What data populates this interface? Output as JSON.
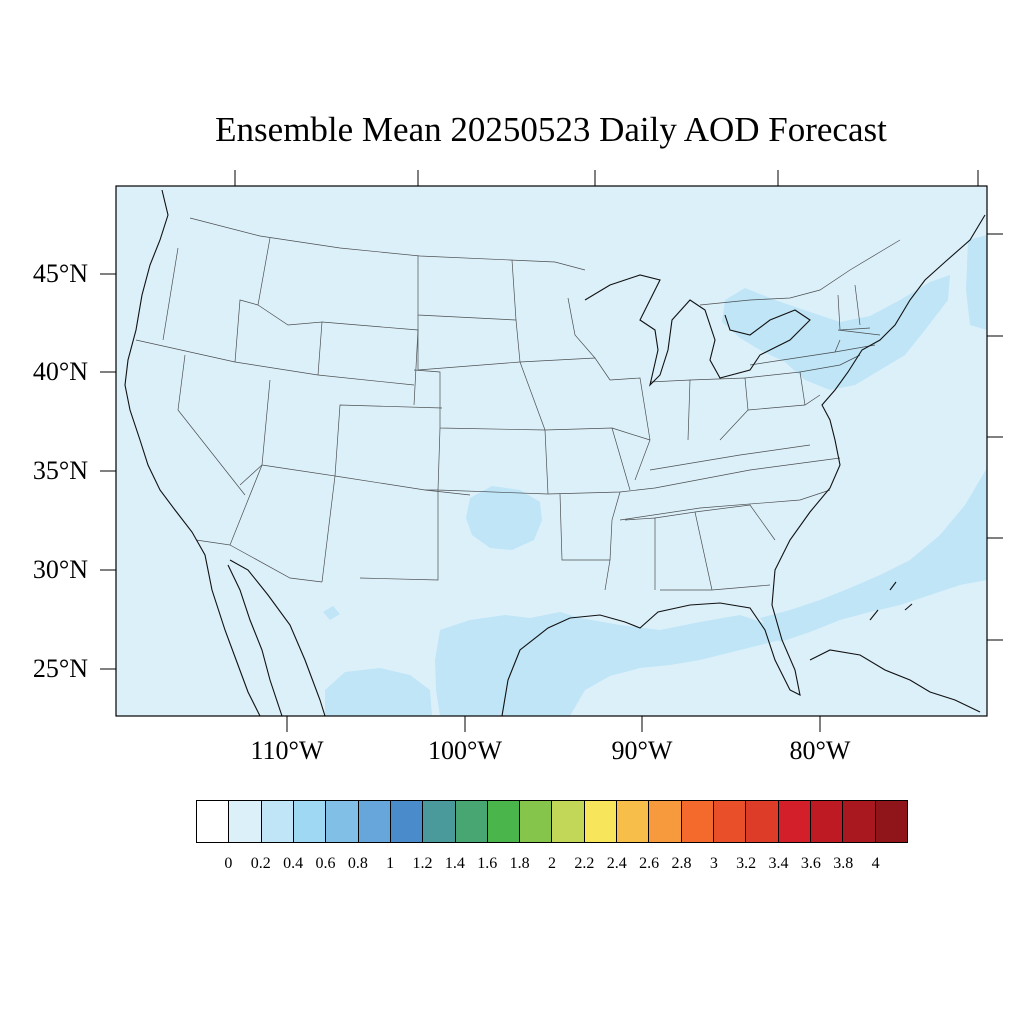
{
  "title": "Ensemble Mean 20250523 Daily AOD Forecast",
  "map": {
    "region": "Continental United States",
    "projection": "Lambert conformal",
    "background_color": "#dcf0fa",
    "elevated_color": "#bfe5f7",
    "lat_labels": [
      "45°N",
      "40°N",
      "35°N",
      "30°N",
      "25°N"
    ],
    "lon_labels": [
      "110°W",
      "100°W",
      "90°W",
      "80°W"
    ],
    "elevated_regions": [
      "Northeast coast / Great Lakes",
      "Western Atlantic",
      "Gulf of Mexico",
      "South Texas / northern Mexico",
      "Oklahoma"
    ]
  },
  "colorbar": {
    "labels": [
      "0",
      "0.2",
      "0.4",
      "0.6",
      "0.8",
      "1",
      "1.2",
      "1.4",
      "1.6",
      "1.8",
      "2",
      "2.2",
      "2.4",
      "2.6",
      "2.8",
      "3",
      "3.2",
      "3.4",
      "3.6",
      "3.8",
      "4"
    ],
    "colors": [
      "#ffffff",
      "#dcf0fa",
      "#bfe5f7",
      "#9fd8f3",
      "#82bfe6",
      "#67a6db",
      "#4a8ccb",
      "#4a9a9c",
      "#48a673",
      "#4ab54a",
      "#86c54c",
      "#c2d657",
      "#f7e65c",
      "#f7bf4a",
      "#f79a3e",
      "#f46a2c",
      "#e9502a",
      "#dd3c28",
      "#d31f2a",
      "#be1a24",
      "#a8181e",
      "#8f151a"
    ]
  }
}
